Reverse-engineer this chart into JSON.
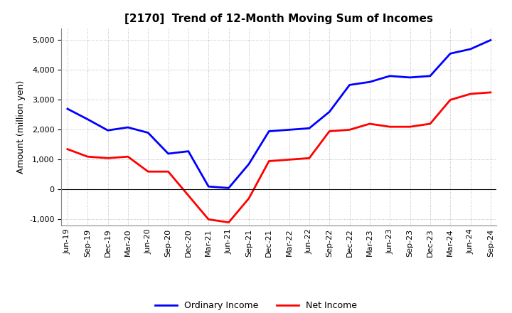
{
  "title": "[2170]  Trend of 12-Month Moving Sum of Incomes",
  "ylabel": "Amount (million yen)",
  "ylim": [
    -1200,
    5400
  ],
  "yticks": [
    -1000,
    0,
    1000,
    2000,
    3000,
    4000,
    5000
  ],
  "x_labels": [
    "Jun-19",
    "Sep-19",
    "Dec-19",
    "Mar-20",
    "Jun-20",
    "Sep-20",
    "Dec-20",
    "Mar-21",
    "Jun-21",
    "Sep-21",
    "Dec-21",
    "Mar-22",
    "Jun-22",
    "Sep-22",
    "Dec-22",
    "Mar-23",
    "Jun-23",
    "Sep-23",
    "Dec-23",
    "Mar-24",
    "Jun-24",
    "Sep-24"
  ],
  "ordinary_income": [
    2700,
    2350,
    1980,
    2080,
    1900,
    1200,
    1280,
    100,
    50,
    850,
    1950,
    2000,
    2050,
    2600,
    3500,
    3600,
    3800,
    3750,
    3800,
    4550,
    4700,
    5000
  ],
  "net_income": [
    1350,
    1100,
    1050,
    1100,
    600,
    600,
    -200,
    -1000,
    -1100,
    -300,
    950,
    1000,
    1050,
    1950,
    2000,
    2200,
    2100,
    2100,
    2200,
    3000,
    3200,
    3250
  ],
  "ordinary_color": "#0000ff",
  "net_color": "#ff0000",
  "grid_color": "#aaaaaa",
  "bg_color": "#ffffff",
  "title_fontsize": 11,
  "label_fontsize": 9,
  "tick_fontsize": 8,
  "legend_fontsize": 9
}
